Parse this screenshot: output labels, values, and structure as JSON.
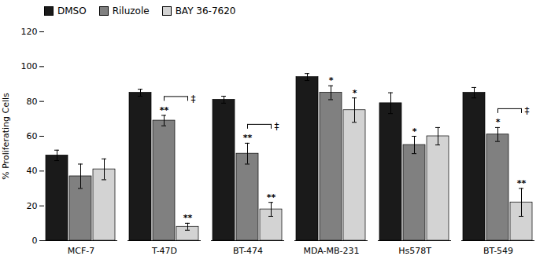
{
  "chart_data": {
    "type": "bar",
    "categories": [
      "MCF-7",
      "T-47D",
      "BT-474",
      "MDA-MB-231",
      "Hs578T",
      "BT-549"
    ],
    "series": [
      {
        "name": "DMSO",
        "color": "#1a1a1a",
        "values": [
          49,
          85,
          81,
          94,
          79,
          85
        ],
        "errors": [
          3,
          2,
          2,
          2,
          6,
          3
        ]
      },
      {
        "name": "Riluzole",
        "color": "#808080",
        "values": [
          37,
          69,
          50,
          85,
          55,
          61
        ],
        "errors": [
          7,
          3,
          6,
          4,
          5,
          4
        ]
      },
      {
        "name": "BAY 36-7620",
        "color": "#d3d3d3",
        "values": [
          41,
          8,
          18,
          75,
          60,
          22
        ],
        "errors": [
          6,
          2,
          4,
          7,
          5,
          8
        ]
      }
    ],
    "ylabel": "% Proliferating Cells",
    "ylim": [
      0,
      120
    ],
    "yticks": [
      0,
      20,
      40,
      60,
      80,
      100,
      120
    ],
    "grid": false,
    "legend": "upper left",
    "annotations": [
      {
        "text": "**",
        "category": "T-47D",
        "series": "Riluzole"
      },
      {
        "text": "**",
        "category": "T-47D",
        "series": "BAY 36-7620"
      },
      {
        "text": "‡",
        "category": "T-47D",
        "between": [
          "Riluzole",
          "BAY 36-7620"
        ]
      },
      {
        "text": "**",
        "category": "BT-474",
        "series": "Riluzole"
      },
      {
        "text": "**",
        "category": "BT-474",
        "series": "BAY 36-7620"
      },
      {
        "text": "‡",
        "category": "BT-474",
        "between": [
          "Riluzole",
          "BAY 36-7620"
        ]
      },
      {
        "text": "*",
        "category": "MDA-MB-231",
        "series": "Riluzole"
      },
      {
        "text": "*",
        "category": "MDA-MB-231",
        "series": "BAY 36-7620"
      },
      {
        "text": "*",
        "category": "Hs578T",
        "series": "Riluzole"
      },
      {
        "text": "*",
        "category": "BT-549",
        "series": "Riluzole"
      },
      {
        "text": "**",
        "category": "BT-549",
        "series": "BAY 36-7620"
      },
      {
        "text": "‡",
        "category": "BT-549",
        "between": [
          "Riluzole",
          "BAY 36-7620"
        ]
      }
    ]
  }
}
